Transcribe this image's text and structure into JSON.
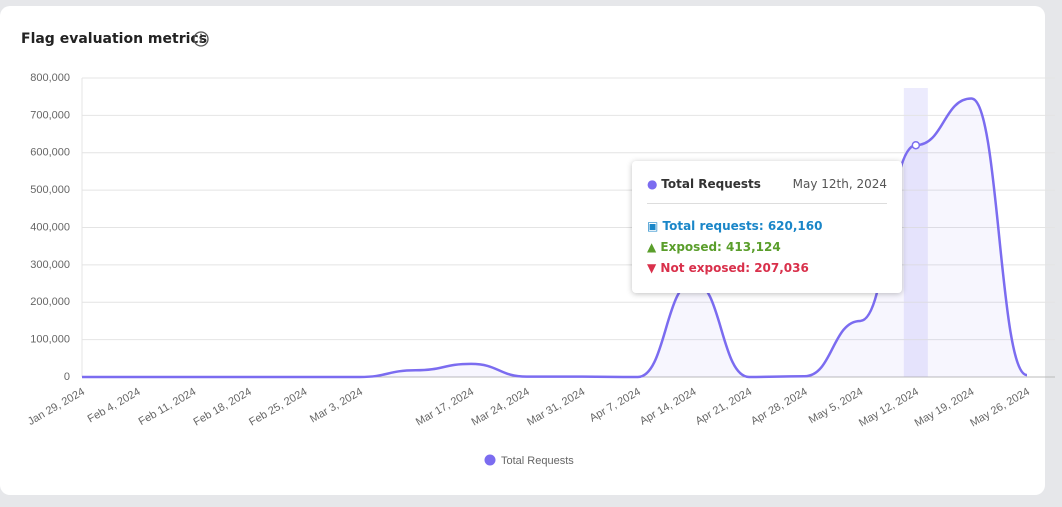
{
  "chart_data": {
    "type": "line",
    "title": "Flag evaluation metrics",
    "categories": [
      "Jan 29, 2024",
      "Feb 4, 2024",
      "Feb 11, 2024",
      "Feb 18, 2024",
      "Feb 25, 2024",
      "Mar 3, 2024",
      null,
      "Mar 17, 2024",
      "Mar 24, 2024",
      "Mar 31, 2024",
      "Apr 7, 2024",
      "Apr 14, 2024",
      "Apr 21, 2024",
      "Apr 28, 2024",
      "May 5, 2024",
      "May 12, 2024",
      "May 19, 2024",
      "May 26, 2024"
    ],
    "series": [
      {
        "name": "Total Requests",
        "color": "#7b6cf0",
        "values": [
          0,
          0,
          0,
          0,
          0,
          0,
          18000,
          35000,
          1000,
          1000,
          0,
          255000,
          0,
          2000,
          150000,
          620160,
          745000,
          5000
        ]
      }
    ],
    "ylim": [
      0,
      800000
    ],
    "yticks": [
      0,
      {
        "value": 100000,
        "label": "100,000"
      },
      {
        "value": 200000,
        "label": "200,000"
      },
      {
        "value": 300000,
        "label": "300,000"
      },
      {
        "value": 400000,
        "label": "400,000"
      },
      {
        "value": 500000,
        "label": "500,000"
      },
      {
        "value": 600000,
        "label": "600,000"
      },
      {
        "value": 700000,
        "label": "700,000"
      },
      {
        "value": 800000,
        "label": "800,000"
      }
    ],
    "grid": true,
    "tooltip": {
      "series": "Total Requests",
      "date": "May 12th, 2024",
      "rows": [
        {
          "label": "Total requests:",
          "value": "620,160"
        },
        {
          "label": "Exposed:",
          "value": "413,124"
        },
        {
          "label": "Not exposed:",
          "value": "207,036"
        }
      ]
    }
  }
}
